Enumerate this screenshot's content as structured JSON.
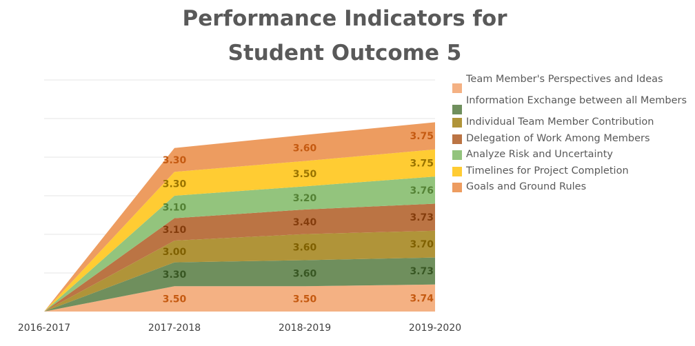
{
  "chart_data": {
    "type": "area",
    "stacked": true,
    "title_lines": [
      "Performance Indicators for",
      "Student Outcome 5"
    ],
    "categories": [
      "2016-2017",
      "2017-2018",
      "2018-2019",
      "2019-2020"
    ],
    "series": [
      {
        "name": "Team Member's Perspectives and Ideas",
        "color": "#f4b183",
        "label_color": "#c55a11",
        "values": [
          0,
          3.5,
          3.5,
          3.74
        ],
        "labels": [
          "",
          "3.50",
          "3.50",
          "3.74"
        ]
      },
      {
        "name": "Information Exchange between all Members",
        "color": "#6f8f5d",
        "label_color": "#385723",
        "values": [
          0,
          3.3,
          3.6,
          3.73
        ],
        "labels": [
          "",
          "3.30",
          "3.60",
          "3.73"
        ]
      },
      {
        "name": "Individual Team Member Contribution",
        "color": "#b09439",
        "label_color": "#7f6000",
        "values": [
          0,
          3.0,
          3.6,
          3.7
        ],
        "labels": [
          "",
          "3.00",
          "3.60",
          "3.70"
        ]
      },
      {
        "name": "Delegation of Work Among Members",
        "color": "#bb7444",
        "label_color": "#843c0c",
        "values": [
          0,
          3.1,
          3.4,
          3.73
        ],
        "labels": [
          "",
          "3.10",
          "3.40",
          "3.73"
        ]
      },
      {
        "name": "Analyze Risk and Uncertainty",
        "color": "#93c47d",
        "label_color": "#548235",
        "values": [
          0,
          3.1,
          3.2,
          3.76
        ],
        "labels": [
          "",
          "3.10",
          "3.20",
          "3.76"
        ]
      },
      {
        "name": "Timelines for Project Completion",
        "color": "#ffcc33",
        "label_color": "#997300",
        "values": [
          0,
          3.3,
          3.5,
          3.75
        ],
        "labels": [
          "",
          "3.30",
          "3.50",
          "3.75"
        ]
      },
      {
        "name": "Goals and Ground Rules",
        "color": "#ed9c60",
        "label_color": "#c55a11",
        "values": [
          0,
          3.3,
          3.6,
          3.75
        ],
        "labels": [
          "",
          "3.30",
          "3.60",
          "3.75"
        ]
      }
    ],
    "legend": "right",
    "grid": true,
    "gridline_color": "#e6e6e6",
    "axis_text_color": "#404040"
  }
}
